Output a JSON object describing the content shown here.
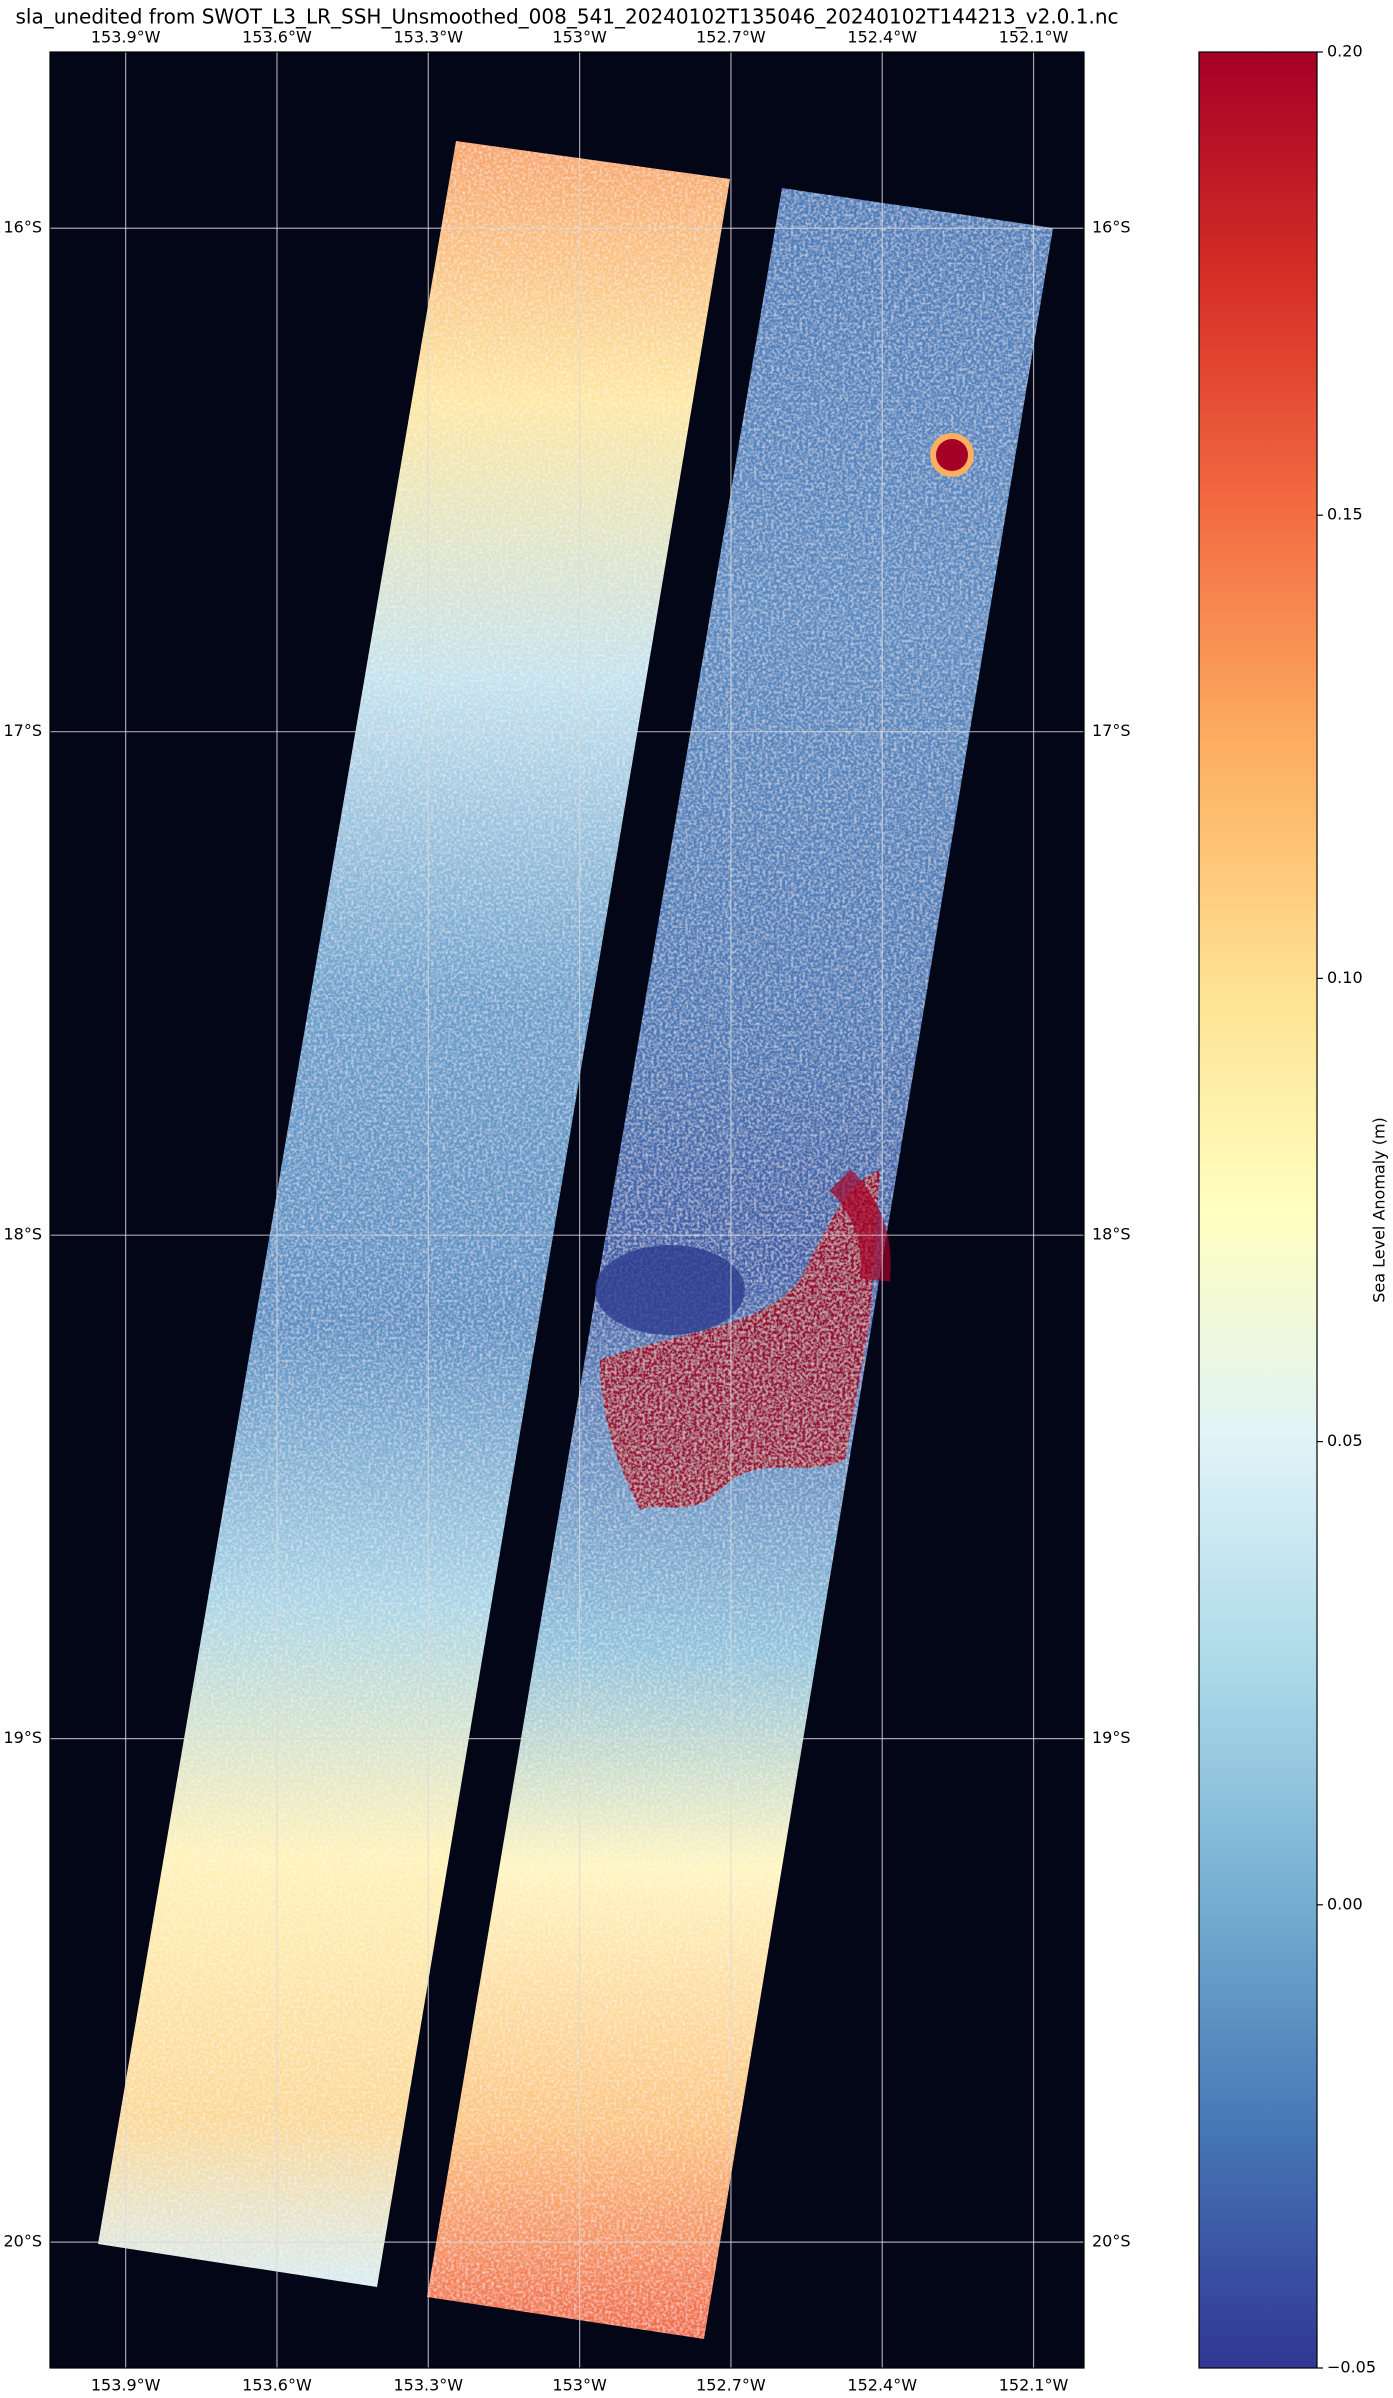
{
  "chart_data": {
    "type": "map",
    "title": "sla_unedited from SWOT_L3_LR_SSH_Unsmoothed_008_541_20240102T135046_20240102T144213_v2.0.1.nc",
    "xlim": [
      -154.05,
      -152.0
    ],
    "ylim": [
      -20.25,
      -15.65
    ],
    "xticks": [
      {
        "value": -153.9,
        "label": "153.9°W"
      },
      {
        "value": -153.6,
        "label": "153.6°W"
      },
      {
        "value": -153.3,
        "label": "153.3°W"
      },
      {
        "value": -153.0,
        "label": "153°W"
      },
      {
        "value": -152.7,
        "label": "152.7°W"
      },
      {
        "value": -152.4,
        "label": "152.4°W"
      },
      {
        "value": -152.1,
        "label": "152.1°W"
      }
    ],
    "yticks": [
      {
        "value": -16,
        "label": "16°S"
      },
      {
        "value": -17,
        "label": "17°S"
      },
      {
        "value": -18,
        "label": "18°S"
      },
      {
        "value": -19,
        "label": "19°S"
      },
      {
        "value": -20,
        "label": "20°S"
      }
    ],
    "grid": true,
    "colorbar": {
      "label": "Sea Level Anomaly (m)",
      "lim": [
        -0.05,
        0.2
      ],
      "ticks": [
        {
          "value": 0.2,
          "label": "0.20"
        },
        0.15,
        {
          "value": 0.1,
          "label": "0.10"
        },
        0.05,
        {
          "value": 0,
          "label": "0.00"
        },
        {
          "value": -0.05,
          "label": "−0.05"
        }
      ],
      "colors": [
        "#313695",
        "#4575b4",
        "#74add1",
        "#abd9e9",
        "#e0f3f8",
        "#ffffbf",
        "#fee090",
        "#fdae61",
        "#f46d43",
        "#d73027",
        "#a50026"
      ]
    }
  }
}
